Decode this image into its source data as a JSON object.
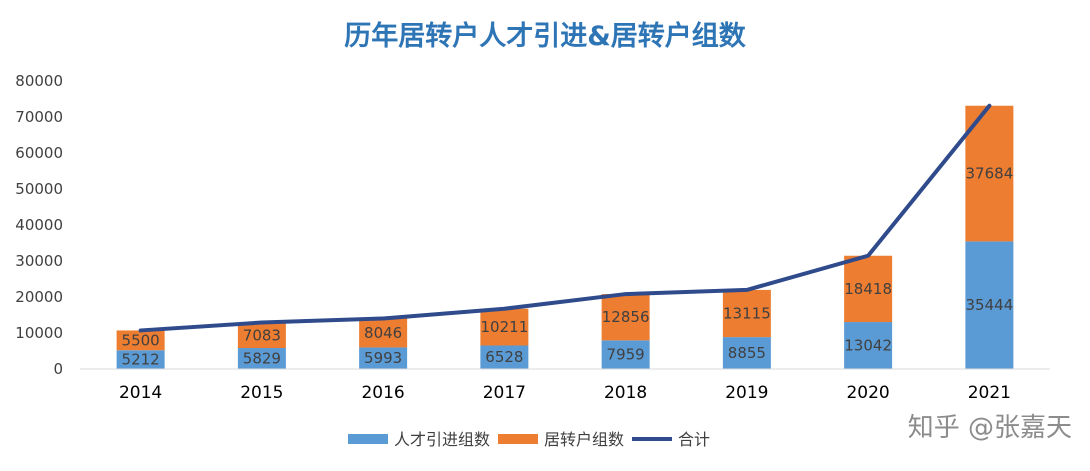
{
  "watermark": "知乎 @张嘉天",
  "colors": {
    "series_a": "#5B9BD5",
    "series_b": "#ED7D31",
    "line": "#2F4B8C",
    "title": "#2E75B6"
  },
  "chart_data": {
    "type": "bar",
    "stacked": true,
    "title": "历年居转户人才引进&居转户组数",
    "categories": [
      "2014",
      "2015",
      "2016",
      "2017",
      "2018",
      "2019",
      "2020",
      "2021"
    ],
    "series": [
      {
        "name": "人才引进组数",
        "type": "bar",
        "values": [
          5212,
          5829,
          5993,
          6528,
          7959,
          8855,
          13042,
          35444
        ]
      },
      {
        "name": "居转户组数",
        "type": "bar",
        "values": [
          5500,
          7083,
          8046,
          10211,
          12856,
          13115,
          18418,
          37684
        ]
      },
      {
        "name": "合计",
        "type": "line",
        "values": [
          10712,
          12912,
          14039,
          16739,
          20815,
          21970,
          31460,
          73128
        ]
      }
    ],
    "ylim": [
      0,
      80000
    ],
    "yticks": [
      "0",
      "10000",
      "20000",
      "30000",
      "40000",
      "50000",
      "60000",
      "70000",
      "80000"
    ],
    "grid": false,
    "legend_position": "bottom"
  }
}
